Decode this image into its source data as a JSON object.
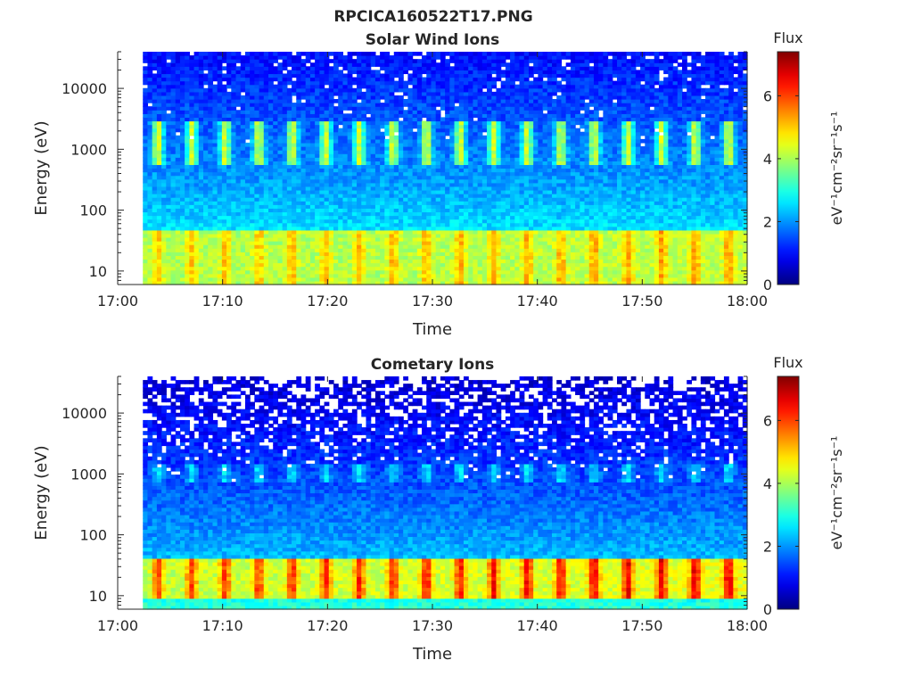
{
  "figure_title": "RPCICA160522T17.PNG",
  "chart_data": [
    {
      "type": "heatmap",
      "title": "Solar Wind Ions",
      "xlabel": "Time",
      "ylabel": "Energy (eV)",
      "x_range": [
        "17:00",
        "18:00"
      ],
      "x_ticks": [
        "17:00",
        "17:10",
        "17:20",
        "17:30",
        "17:40",
        "17:50",
        "18:00"
      ],
      "y_scale": "log",
      "y_range": [
        6,
        40000
      ],
      "y_ticks": [
        {
          "label": "10",
          "value": 10
        },
        {
          "label": "100",
          "value": 100
        },
        {
          "label": "1000",
          "value": 1000
        },
        {
          "label": "10000",
          "value": 10000
        }
      ],
      "data_start_time": "17:02",
      "data_end_time": "18:00",
      "colorbar": {
        "title": "Flux",
        "label": "eV⁻¹cm⁻²sr⁻¹s⁻¹",
        "range": [
          0,
          7.4
        ],
        "ticks": [
          "0",
          "2",
          "4",
          "6"
        ],
        "colormap": "jet"
      },
      "bands": [
        {
          "name": "low energy",
          "energy_range": [
            6,
            40
          ],
          "peak_flux": 5.2,
          "period_min": 3.2
        },
        {
          "name": "mid energy",
          "energy_range": [
            600,
            3000
          ],
          "peak_flux": 4.3,
          "period_min": 3.2
        }
      ],
      "background_flux": {
        "high_energy": 1.0,
        "low_energy": 3.5
      }
    },
    {
      "type": "heatmap",
      "title": "Cometary Ions",
      "xlabel": "Time",
      "ylabel": "Energy (eV)",
      "x_range": [
        "17:00",
        "18:00"
      ],
      "x_ticks": [
        "17:00",
        "17:10",
        "17:20",
        "17:30",
        "17:40",
        "17:50",
        "18:00"
      ],
      "y_scale": "log",
      "y_range": [
        6,
        40000
      ],
      "y_ticks": [
        {
          "label": "10",
          "value": 10
        },
        {
          "label": "100",
          "value": 100
        },
        {
          "label": "1000",
          "value": 1000
        },
        {
          "label": "10000",
          "value": 10000
        }
      ],
      "data_start_time": "17:02",
      "data_end_time": "18:00",
      "colorbar": {
        "title": "Flux",
        "label": "eV⁻¹cm⁻²sr⁻¹s⁻¹",
        "range": [
          0,
          7.4
        ],
        "ticks": [
          "0",
          "2",
          "4",
          "6"
        ],
        "colormap": "jet"
      },
      "bands": [
        {
          "name": "low energy",
          "energy_range": [
            10,
            35
          ],
          "peak_flux": 6.4,
          "period_min": 3.2
        },
        {
          "name": "mid energy",
          "energy_range": [
            700,
            1500
          ],
          "peak_flux": 2.6,
          "period_min": 3.2
        }
      ],
      "background_flux": {
        "high_energy": 0.6,
        "low_energy": 3.2
      }
    }
  ]
}
